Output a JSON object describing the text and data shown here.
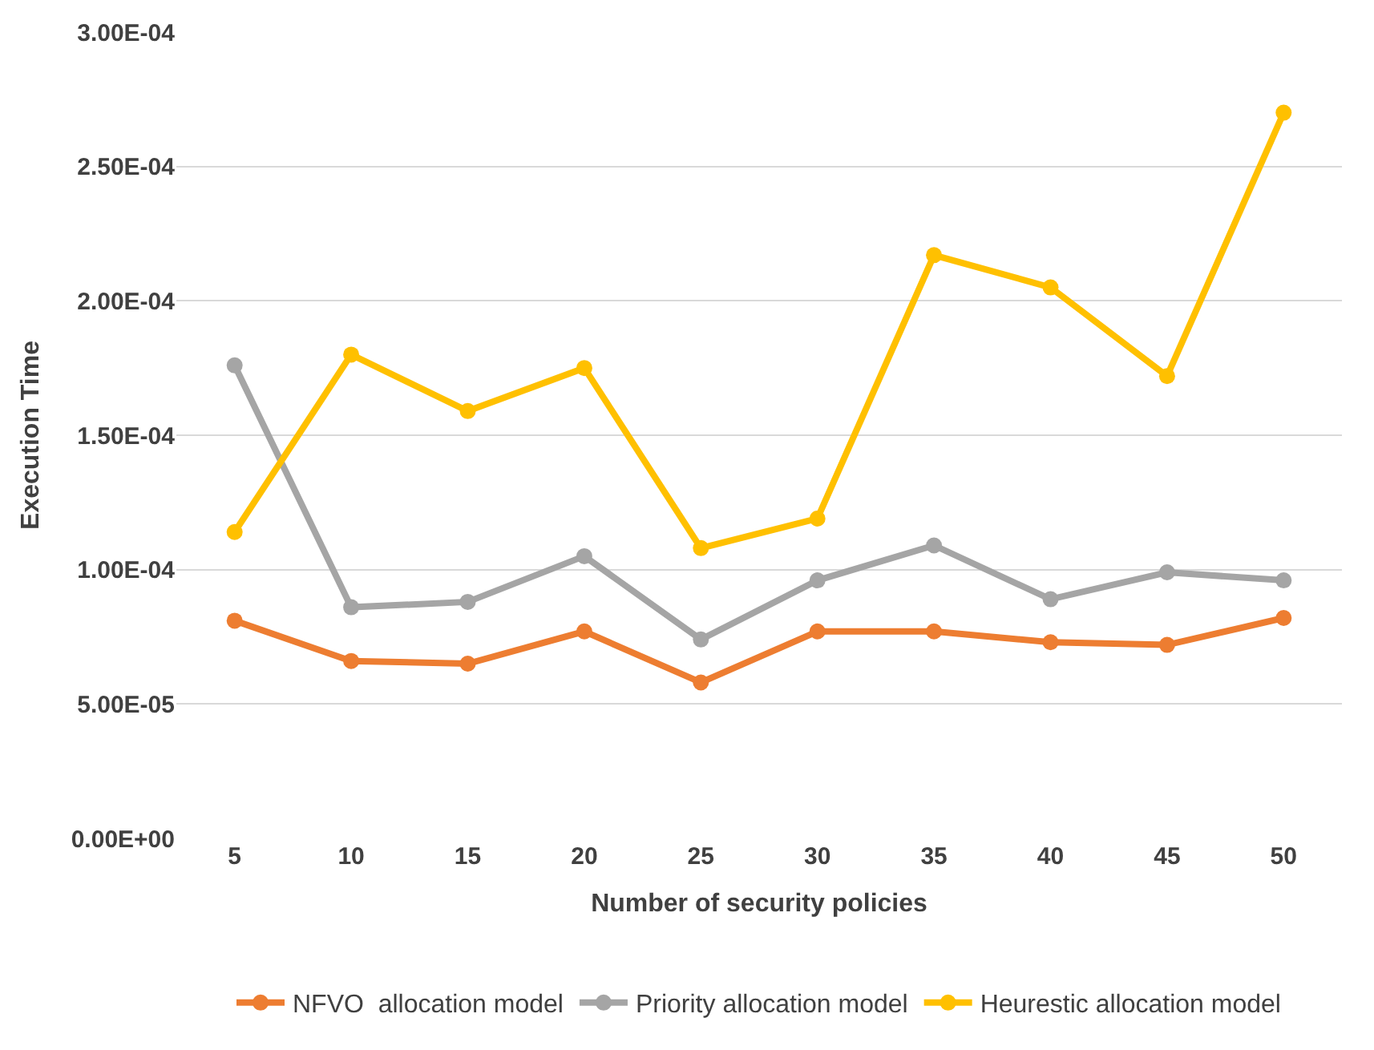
{
  "chart_data": {
    "type": "line",
    "xlabel": "Number of security policies",
    "ylabel": "Execution Time",
    "categories": [
      "5",
      "10",
      "15",
      "20",
      "25",
      "30",
      "35",
      "40",
      "45",
      "50"
    ],
    "series": [
      {
        "name": "NFVO  allocation model",
        "color": "#ed7d31",
        "values": [
          8.1e-05,
          6.6e-05,
          6.5e-05,
          7.7e-05,
          5.8e-05,
          7.7e-05,
          7.7e-05,
          7.3e-05,
          7.2e-05,
          8.2e-05
        ]
      },
      {
        "name": "Priority allocation model",
        "color": "#a5a5a5",
        "values": [
          0.000176,
          8.6e-05,
          8.8e-05,
          0.000105,
          7.4e-05,
          9.6e-05,
          0.000109,
          8.9e-05,
          9.9e-05,
          9.6e-05
        ]
      },
      {
        "name": "Heurestic allocation model",
        "color": "#ffc000",
        "values": [
          0.000114,
          0.00018,
          0.000159,
          0.000175,
          0.000108,
          0.000119,
          0.000217,
          0.000205,
          0.000172,
          0.00027
        ]
      }
    ],
    "ylim": [
      0,
      0.0003
    ],
    "yticks": [
      {
        "value": 0,
        "label": "0.00E+00"
      },
      {
        "value": 5e-05,
        "label": "5.00E-05"
      },
      {
        "value": 0.0001,
        "label": "1.00E-04"
      },
      {
        "value": 0.00015,
        "label": "1.50E-04"
      },
      {
        "value": 0.0002,
        "label": "2.00E-04"
      },
      {
        "value": 0.00025,
        "label": "2.50E-04"
      },
      {
        "value": 0.0003,
        "label": "3.00E-04"
      }
    ],
    "grid": "y",
    "legend": "bottom",
    "marker": "circle",
    "line_style": "solid"
  }
}
